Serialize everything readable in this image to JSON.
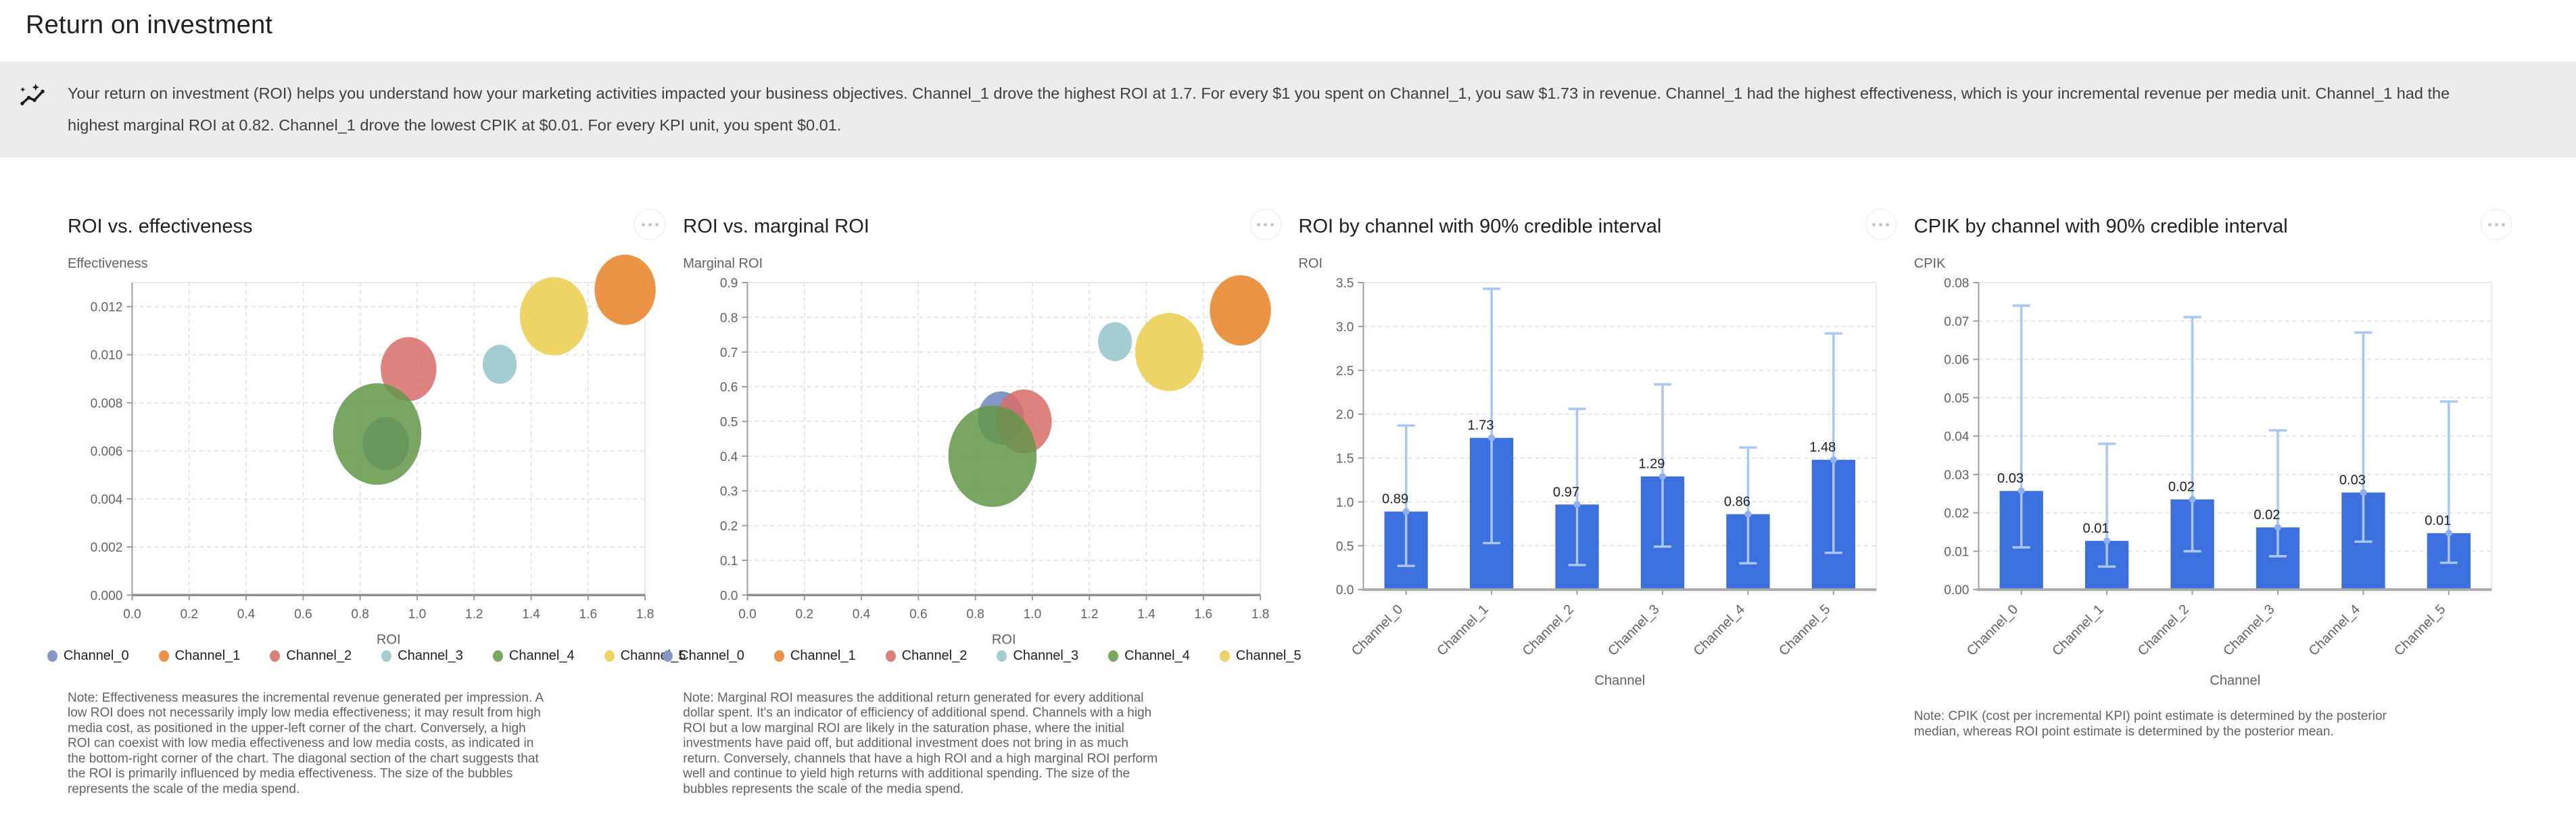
{
  "page": {
    "title": "Return on investment"
  },
  "banner": {
    "icon": "auto-graph-icon",
    "text": "Your return on investment (ROI) helps you understand how your marketing activities impacted your business objectives. Channel_1 drove the highest ROI at 1.7. For every $1 you spent on Channel_1, you saw $1.73 in revenue. Channel_1 had the highest effectiveness, which is your incremental revenue per media unit. Channel_1 had the highest marginal ROI at 0.82. Channel_1 drove the lowest CPIK at $0.01. For every KPI unit, you spent $0.01."
  },
  "channels": [
    "Channel_0",
    "Channel_1",
    "Channel_2",
    "Channel_3",
    "Channel_4",
    "Channel_5"
  ],
  "palette": {
    "channel_fill": [
      "#6F85BB",
      "#E98124",
      "#D76C68",
      "#93C4C9",
      "#639749",
      "#EBCC49"
    ],
    "channel_legend": [
      "#8497C5",
      "#EC9245",
      "#DC807C",
      "#A3CDD1",
      "#7AA664",
      "#EED364"
    ],
    "bubble_opacity": 0.85,
    "bar": "#3C70DE",
    "ci_line": "#A9C6F5",
    "ci_marker": "#8FB0EE",
    "grid": "#dcdcdc",
    "plot_border": "#e4e4e4",
    "axis": "#9e9e9e",
    "tick_text": "#5f6368",
    "value_text": "#202124"
  },
  "chart_data": [
    {
      "type": "scatter",
      "title": "ROI vs. effectiveness",
      "ylabel": "Effectiveness",
      "xlabel": "ROI",
      "xlim": [
        0,
        1.8
      ],
      "ylim": [
        0,
        0.013
      ],
      "xticks": {
        "values": [
          0,
          0.2,
          0.4,
          0.6,
          0.8,
          1.0,
          1.2,
          1.4,
          1.6,
          1.8
        ],
        "labels": [
          "0.0",
          "0.2",
          "0.4",
          "0.6",
          "0.8",
          "1.0",
          "1.2",
          "1.4",
          "1.6",
          "1.8"
        ]
      },
      "yticks": {
        "values": [
          0,
          0.002,
          0.004,
          0.006,
          0.008,
          0.01,
          0.012
        ],
        "labels": [
          "0.000",
          "0.002",
          "0.004",
          "0.006",
          "0.008",
          "0.010",
          "0.012"
        ]
      },
      "grid": "both-dashed",
      "legend_position": "bottom",
      "series": [
        {
          "name": "Channel_0",
          "x": 0.89,
          "y": 0.0063,
          "size": 34
        },
        {
          "name": "Channel_1",
          "x": 1.73,
          "y": 0.0127,
          "size": 45
        },
        {
          "name": "Channel_2",
          "x": 0.97,
          "y": 0.0094,
          "size": 41
        },
        {
          "name": "Channel_3",
          "x": 1.29,
          "y": 0.0096,
          "size": 25
        },
        {
          "name": "Channel_4",
          "x": 0.86,
          "y": 0.0067,
          "size": 65
        },
        {
          "name": "Channel_5",
          "x": 1.48,
          "y": 0.0116,
          "size": 50
        }
      ],
      "note": "Note: Effectiveness measures the incremental revenue generated per impression. A low ROI does not necessarily imply low media effectiveness; it may result from high media cost, as positioned in the upper-left corner of the chart. Conversely, a high ROI can coexist with low media effectiveness and low media costs, as indicated in the bottom-right corner of the chart. The diagonal section of the chart suggests that the ROI is primarily influenced by media effectiveness. The size of the bubbles represents the scale of the media spend."
    },
    {
      "type": "scatter",
      "title": "ROI vs. marginal ROI",
      "ylabel": "Marginal ROI",
      "xlabel": "ROI",
      "xlim": [
        0,
        1.8
      ],
      "ylim": [
        0,
        0.9
      ],
      "xticks": {
        "values": [
          0,
          0.2,
          0.4,
          0.6,
          0.8,
          1.0,
          1.2,
          1.4,
          1.6,
          1.8
        ],
        "labels": [
          "0.0",
          "0.2",
          "0.4",
          "0.6",
          "0.8",
          "1.0",
          "1.2",
          "1.4",
          "1.6",
          "1.8"
        ]
      },
      "yticks": {
        "values": [
          0,
          0.1,
          0.2,
          0.3,
          0.4,
          0.5,
          0.6,
          0.7,
          0.8,
          0.9
        ],
        "labels": [
          "0.0",
          "0.1",
          "0.2",
          "0.3",
          "0.4",
          "0.5",
          "0.6",
          "0.7",
          "0.8",
          "0.9"
        ]
      },
      "grid": "both-dashed",
      "legend_position": "bottom",
      "series": [
        {
          "name": "Channel_0",
          "x": 0.89,
          "y": 0.51,
          "size": 34
        },
        {
          "name": "Channel_1",
          "x": 1.73,
          "y": 0.82,
          "size": 45
        },
        {
          "name": "Channel_2",
          "x": 0.97,
          "y": 0.5,
          "size": 41
        },
        {
          "name": "Channel_3",
          "x": 1.29,
          "y": 0.73,
          "size": 25
        },
        {
          "name": "Channel_4",
          "x": 0.86,
          "y": 0.4,
          "size": 65
        },
        {
          "name": "Channel_5",
          "x": 1.48,
          "y": 0.7,
          "size": 50
        }
      ],
      "note": "Note: Marginal ROI measures the additional return generated for every additional dollar spent. It's an indicator of efficiency of additional spend. Channels with a high ROI but a low marginal ROI are likely in the saturation phase, where the initial investments have paid off, but additional investment does not bring in as much return. Conversely, channels that have a high ROI and a high marginal ROI perform well and continue to yield high returns with additional spending. The size of the bubbles represents the scale of the media spend."
    },
    {
      "type": "bar",
      "title": "ROI by channel with 90% credible interval",
      "ylabel": "ROI",
      "xlabel": "Channel",
      "categories": [
        "Channel_0",
        "Channel_1",
        "Channel_2",
        "Channel_3",
        "Channel_4",
        "Channel_5"
      ],
      "values": [
        0.89,
        1.73,
        0.97,
        1.29,
        0.86,
        1.48
      ],
      "value_labels": [
        "0.89",
        "1.73",
        "0.97",
        "1.29",
        "0.86",
        "1.48"
      ],
      "ci_low": [
        0.27,
        0.53,
        0.28,
        0.49,
        0.3,
        0.42
      ],
      "ci_high": [
        1.87,
        3.43,
        2.06,
        2.34,
        1.62,
        2.92
      ],
      "ylim": [
        0,
        3.5
      ],
      "yticks": {
        "values": [
          0,
          0.5,
          1.0,
          1.5,
          2.0,
          2.5,
          3.0,
          3.5
        ],
        "labels": [
          "0.0",
          "0.5",
          "1.0",
          "1.5",
          "2.0",
          "2.5",
          "3.0",
          "3.5"
        ]
      },
      "grid": "horizontal-dashed",
      "note": ""
    },
    {
      "type": "bar",
      "title": "CPIK by channel with 90% credible interval",
      "ylabel": "CPIK",
      "xlabel": "Channel",
      "categories": [
        "Channel_0",
        "Channel_1",
        "Channel_2",
        "Channel_3",
        "Channel_4",
        "Channel_5"
      ],
      "values": [
        0.0257,
        0.0127,
        0.0235,
        0.0162,
        0.0253,
        0.0147
      ],
      "value_labels": [
        "0.03",
        "0.01",
        "0.02",
        "0.02",
        "0.03",
        "0.01"
      ],
      "ci_low": [
        0.011,
        0.006,
        0.01,
        0.0087,
        0.0125,
        0.007
      ],
      "ci_high": [
        0.074,
        0.038,
        0.071,
        0.0415,
        0.067,
        0.049
      ],
      "ylim": [
        0,
        0.08
      ],
      "yticks": {
        "values": [
          0,
          0.01,
          0.02,
          0.03,
          0.04,
          0.05,
          0.06,
          0.07,
          0.08
        ],
        "labels": [
          "0.00",
          "0.01",
          "0.02",
          "0.03",
          "0.04",
          "0.05",
          "0.06",
          "0.07",
          "0.08"
        ]
      },
      "grid": "horizontal-dashed",
      "note": "Note: CPIK (cost per incremental KPI) point estimate is determined by the posterior median, whereas ROI point estimate is determined by the posterior mean."
    }
  ]
}
